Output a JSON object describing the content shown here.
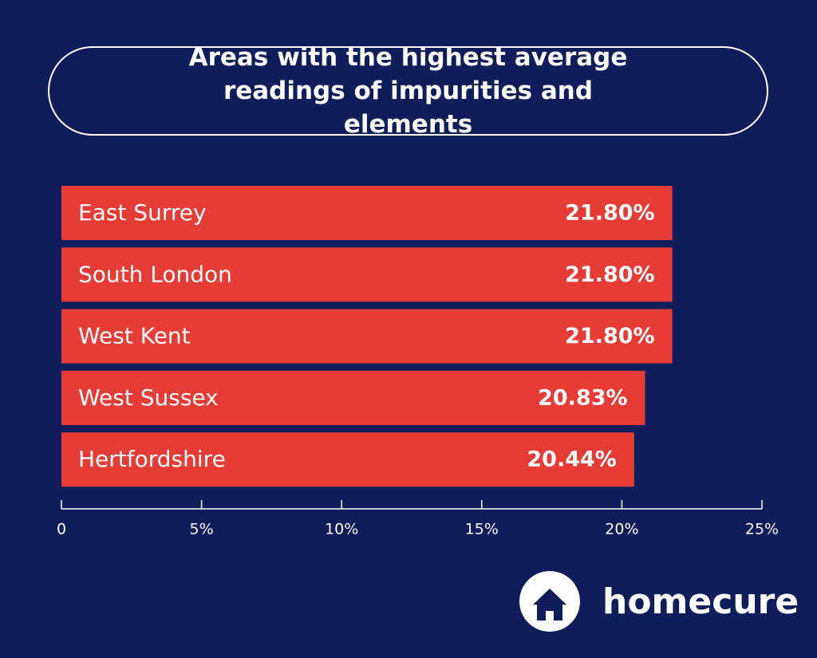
{
  "chart_data": {
    "type": "barh",
    "title": "Areas with the highest average readings of impurities and elements",
    "categories": [
      "East Surrey",
      "South London",
      "West Kent",
      "West Sussex",
      "Hertfordshire"
    ],
    "values": [
      21.8,
      21.8,
      21.8,
      20.83,
      20.44
    ],
    "value_labels": [
      "21.80%",
      "21.80%",
      "21.80%",
      "20.83%",
      "20.44%"
    ],
    "color": "#e63c35",
    "xlim": [
      0,
      25
    ],
    "xticks": [
      0,
      {
        "value": 5,
        "label": "5%"
      },
      {
        "value": 10,
        "label": "10%"
      },
      {
        "value": 15,
        "label": "15%"
      },
      {
        "value": 20,
        "label": "20%"
      },
      {
        "value": 25,
        "label": "25%"
      }
    ]
  },
  "brand": "homecure"
}
